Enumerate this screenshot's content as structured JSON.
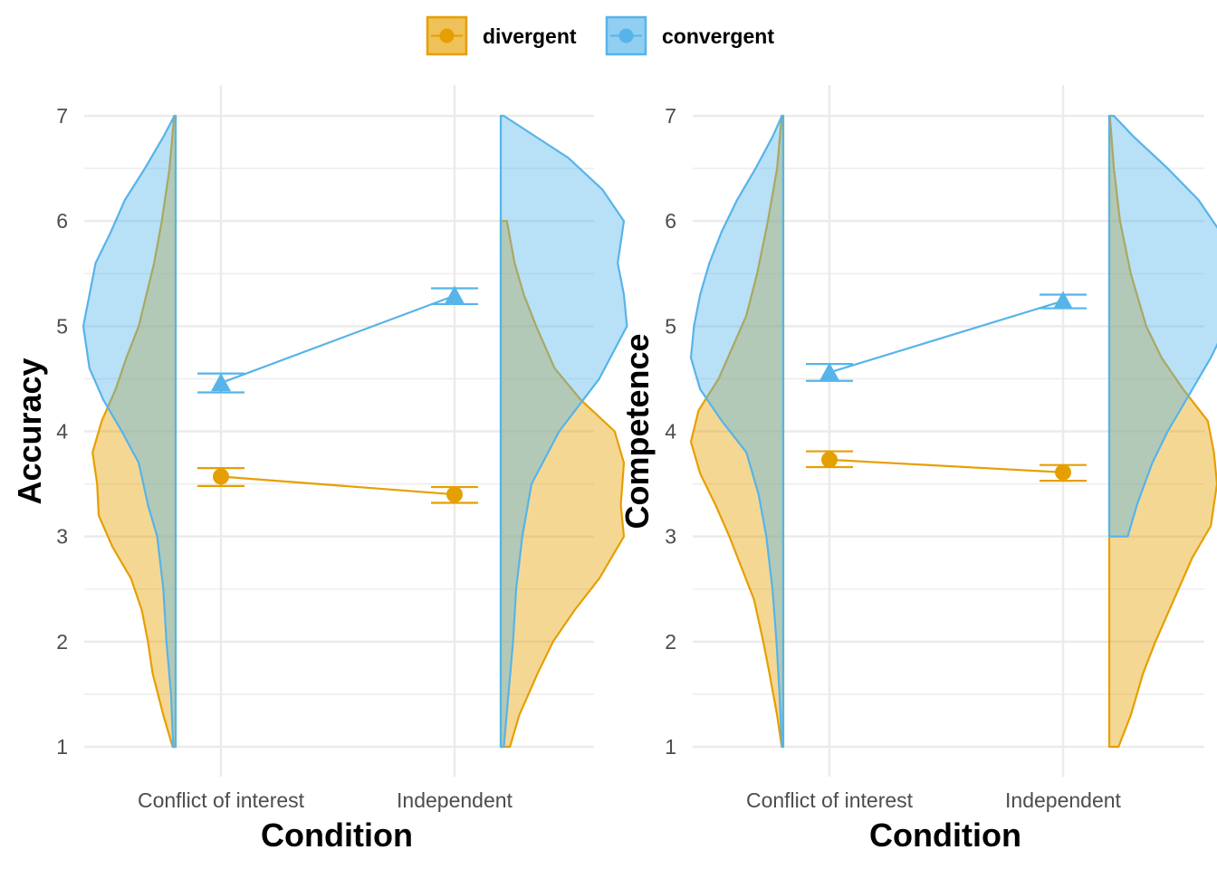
{
  "legend": {
    "position": "top",
    "items": [
      {
        "label": "divergent",
        "color": "#E69F00",
        "marker": "circle"
      },
      {
        "label": "convergent",
        "color": "#56B4E9",
        "marker": "triangle"
      }
    ]
  },
  "chart_data": [
    {
      "type": "raincloud",
      "xlabel": "Condition",
      "ylabel": "Accuracy",
      "categories": [
        "Conflict of interest",
        "Independent"
      ],
      "ylim": [
        1,
        7
      ],
      "yticks": [
        1,
        2,
        3,
        4,
        5,
        6,
        7
      ],
      "grid": true,
      "series": [
        {
          "name": "divergent",
          "color": "#E69F00",
          "marker": "circle",
          "means": [
            3.57,
            3.4
          ],
          "error_low": [
            3.48,
            3.32
          ],
          "error_high": [
            3.65,
            3.47
          ],
          "density": [
            {
              "range": [
                1,
                7
              ],
              "profile": [
                [
                  1.0,
                  0.01
                ],
                [
                  1.3,
                  0.04
                ],
                [
                  1.7,
                  0.075
                ],
                [
                  2.0,
                  0.09
                ],
                [
                  2.3,
                  0.11
                ],
                [
                  2.6,
                  0.145
                ],
                [
                  2.9,
                  0.205
                ],
                [
                  3.2,
                  0.25
                ],
                [
                  3.5,
                  0.255
                ],
                [
                  3.8,
                  0.27
                ],
                [
                  4.1,
                  0.24
                ],
                [
                  4.4,
                  0.195
                ],
                [
                  4.7,
                  0.16
                ],
                [
                  5.0,
                  0.12
                ],
                [
                  5.3,
                  0.095
                ],
                [
                  5.6,
                  0.07
                ],
                [
                  6.0,
                  0.045
                ],
                [
                  6.5,
                  0.02
                ],
                [
                  7.0,
                  0.005
                ]
              ]
            },
            {
              "range": [
                1,
                6
              ],
              "profile": [
                [
                  1.0,
                  0.03
                ],
                [
                  1.3,
                  0.06
                ],
                [
                  1.7,
                  0.12
                ],
                [
                  2.0,
                  0.17
                ],
                [
                  2.3,
                  0.24
                ],
                [
                  2.6,
                  0.32
                ],
                [
                  3.0,
                  0.4
                ],
                [
                  3.3,
                  0.39
                ],
                [
                  3.7,
                  0.4
                ],
                [
                  4.0,
                  0.37
                ],
                [
                  4.3,
                  0.26
                ],
                [
                  4.6,
                  0.175
                ],
                [
                  5.0,
                  0.115
                ],
                [
                  5.3,
                  0.075
                ],
                [
                  5.6,
                  0.045
                ],
                [
                  6.0,
                  0.02
                ]
              ]
            }
          ]
        },
        {
          "name": "convergent",
          "color": "#56B4E9",
          "marker": "triangle",
          "means": [
            4.46,
            5.29
          ],
          "error_low": [
            4.37,
            5.21
          ],
          "error_high": [
            4.55,
            5.36
          ],
          "density": [
            {
              "range": [
                1,
                7
              ],
              "profile": [
                [
                  1.0,
                  0.008
                ],
                [
                  1.5,
                  0.015
                ],
                [
                  2.0,
                  0.03
                ],
                [
                  2.5,
                  0.04
                ],
                [
                  3.0,
                  0.06
                ],
                [
                  3.3,
                  0.09
                ],
                [
                  3.7,
                  0.12
                ],
                [
                  4.0,
                  0.175
                ],
                [
                  4.3,
                  0.235
                ],
                [
                  4.6,
                  0.28
                ],
                [
                  5.0,
                  0.3
                ],
                [
                  5.3,
                  0.28
                ],
                [
                  5.6,
                  0.26
                ],
                [
                  5.9,
                  0.21
                ],
                [
                  6.2,
                  0.165
                ],
                [
                  6.5,
                  0.1
                ],
                [
                  6.8,
                  0.04
                ],
                [
                  7.0,
                  0.004
                ]
              ]
            },
            {
              "range": [
                1,
                7
              ],
              "profile": [
                [
                  1.0,
                  0.01
                ],
                [
                  1.5,
                  0.025
                ],
                [
                  2.0,
                  0.04
                ],
                [
                  2.5,
                  0.05
                ],
                [
                  3.0,
                  0.07
                ],
                [
                  3.5,
                  0.1
                ],
                [
                  4.0,
                  0.19
                ],
                [
                  4.5,
                  0.32
                ],
                [
                  5.0,
                  0.41
                ],
                [
                  5.3,
                  0.4
                ],
                [
                  5.6,
                  0.38
                ],
                [
                  6.0,
                  0.4
                ],
                [
                  6.3,
                  0.33
                ],
                [
                  6.6,
                  0.22
                ],
                [
                  7.0,
                  0.01
                ]
              ]
            }
          ]
        }
      ]
    },
    {
      "type": "raincloud",
      "xlabel": "Condition",
      "ylabel": "Competence",
      "categories": [
        "Conflict of interest",
        "Independent"
      ],
      "ylim": [
        1,
        7
      ],
      "yticks": [
        1,
        2,
        3,
        4,
        5,
        6,
        7
      ],
      "grid": true,
      "series": [
        {
          "name": "divergent",
          "color": "#E69F00",
          "marker": "circle",
          "means": [
            3.73,
            3.61
          ],
          "error_low": [
            3.66,
            3.53
          ],
          "error_high": [
            3.81,
            3.68
          ],
          "density": [
            {
              "range": [
                1,
                7
              ],
              "profile": [
                [
                  1.0,
                  0.005
                ],
                [
                  1.3,
                  0.02
                ],
                [
                  1.7,
                  0.045
                ],
                [
                  2.0,
                  0.065
                ],
                [
                  2.4,
                  0.095
                ],
                [
                  2.7,
                  0.135
                ],
                [
                  3.0,
                  0.175
                ],
                [
                  3.3,
                  0.22
                ],
                [
                  3.6,
                  0.27
                ],
                [
                  3.9,
                  0.3
                ],
                [
                  4.2,
                  0.275
                ],
                [
                  4.5,
                  0.21
                ],
                [
                  4.8,
                  0.165
                ],
                [
                  5.1,
                  0.12
                ],
                [
                  5.5,
                  0.085
                ],
                [
                  6.0,
                  0.05
                ],
                [
                  6.5,
                  0.02
                ],
                [
                  7.0,
                  0.005
                ]
              ]
            },
            {
              "range": [
                1,
                7
              ],
              "profile": [
                [
                  1.0,
                  0.03
                ],
                [
                  1.3,
                  0.07
                ],
                [
                  1.7,
                  0.11
                ],
                [
                  2.0,
                  0.15
                ],
                [
                  2.4,
                  0.21
                ],
                [
                  2.8,
                  0.27
                ],
                [
                  3.1,
                  0.33
                ],
                [
                  3.5,
                  0.35
                ],
                [
                  3.8,
                  0.34
                ],
                [
                  4.1,
                  0.32
                ],
                [
                  4.4,
                  0.24
                ],
                [
                  4.7,
                  0.17
                ],
                [
                  5.0,
                  0.12
                ],
                [
                  5.5,
                  0.07
                ],
                [
                  6.0,
                  0.035
                ],
                [
                  6.5,
                  0.015
                ],
                [
                  7.0,
                  0.002
                ]
              ]
            }
          ]
        },
        {
          "name": "convergent",
          "color": "#56B4E9",
          "marker": "triangle",
          "means": [
            4.56,
            5.24
          ],
          "error_low": [
            4.48,
            5.17
          ],
          "error_high": [
            4.64,
            5.3
          ],
          "density": [
            {
              "range": [
                1,
                7
              ],
              "profile": [
                [
                  1.0,
                  0.004
                ],
                [
                  1.5,
                  0.012
                ],
                [
                  2.0,
                  0.022
                ],
                [
                  2.5,
                  0.035
                ],
                [
                  3.0,
                  0.055
                ],
                [
                  3.4,
                  0.08
                ],
                [
                  3.8,
                  0.12
                ],
                [
                  4.1,
                  0.2
                ],
                [
                  4.4,
                  0.27
                ],
                [
                  4.7,
                  0.3
                ],
                [
                  5.0,
                  0.29
                ],
                [
                  5.3,
                  0.27
                ],
                [
                  5.6,
                  0.24
                ],
                [
                  5.9,
                  0.2
                ],
                [
                  6.2,
                  0.15
                ],
                [
                  6.5,
                  0.09
                ],
                [
                  6.8,
                  0.035
                ],
                [
                  7.0,
                  0.004
                ]
              ]
            },
            {
              "range": [
                3,
                7
              ],
              "profile": [
                [
                  3.0,
                  0.06
                ],
                [
                  3.3,
                  0.09
                ],
                [
                  3.7,
                  0.14
                ],
                [
                  4.0,
                  0.19
                ],
                [
                  4.4,
                  0.27
                ],
                [
                  4.7,
                  0.33
                ],
                [
                  5.0,
                  0.38
                ],
                [
                  5.3,
                  0.37
                ],
                [
                  5.6,
                  0.38
                ],
                [
                  5.9,
                  0.36
                ],
                [
                  6.2,
                  0.29
                ],
                [
                  6.5,
                  0.19
                ],
                [
                  6.8,
                  0.08
                ],
                [
                  7.0,
                  0.015
                ]
              ]
            }
          ]
        }
      ]
    }
  ]
}
